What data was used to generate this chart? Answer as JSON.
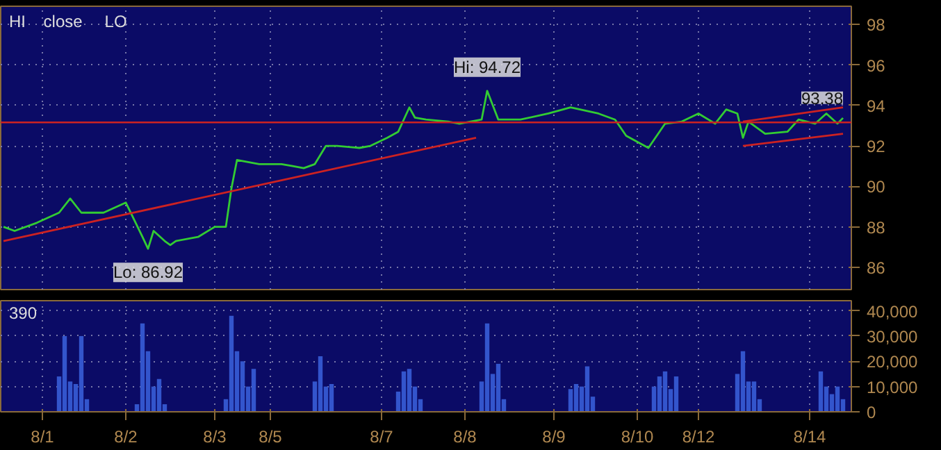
{
  "chart_data": [
    {
      "type": "line",
      "ylim": [
        84.9,
        98.9
      ],
      "yticks": [
        86,
        88,
        90,
        92,
        94,
        96,
        98
      ],
      "categories": [
        null,
        null,
        null,
        null,
        null,
        null,
        null,
        null,
        null,
        null,
        null,
        null,
        null,
        null,
        null,
        null,
        null,
        null,
        null,
        null,
        null,
        null,
        null,
        null,
        null,
        null,
        null,
        null,
        null,
        null,
        null,
        null,
        null,
        null,
        null,
        null,
        null,
        null,
        null,
        null,
        null,
        null,
        null,
        null,
        null,
        null,
        null,
        null,
        null,
        null,
        null,
        null,
        null,
        null,
        null,
        null,
        null,
        null,
        null,
        null,
        null,
        null,
        null,
        null,
        null,
        null,
        null,
        null,
        null,
        null,
        null,
        null,
        null,
        null,
        null,
        null,
        null,
        null,
        null,
        null,
        null,
        null,
        null,
        null,
        null,
        null,
        null,
        null,
        null,
        null,
        null,
        null,
        null,
        null,
        null,
        null,
        null,
        null,
        null,
        null,
        null,
        null,
        null,
        null,
        null,
        null,
        null,
        null,
        null,
        null,
        null,
        null,
        null,
        null,
        null,
        null,
        null,
        null,
        null,
        null,
        null,
        null,
        null,
        null,
        null,
        null,
        null,
        null,
        null,
        null,
        null,
        null,
        null,
        null,
        null,
        null,
        null,
        null,
        null,
        null,
        null,
        null,
        null,
        null,
        null,
        null,
        null,
        null,
        null,
        null,
        null,
        null,
        null
      ],
      "tick_labels": "y",
      "grid": true,
      "line_style": "solid",
      "ref_lines": [
        {
          "axis": "y",
          "value": 93.16,
          "color": "#cc2222"
        }
      ],
      "annotations": [
        {
          "text": "Hi: 94.72",
          "y": 94.72
        },
        {
          "text": "Lo: 86.92",
          "y": 86.92
        },
        {
          "text": "93.38",
          "y": 93.38
        },
        "HI",
        "close",
        "LO"
      ],
      "series": [
        {
          "color": "#33cc33",
          "values": [
            88.0,
            null,
            87.8,
            null,
            null,
            null,
            88.2,
            null,
            null,
            null,
            88.7,
            null,
            89.4,
            null,
            88.7,
            null,
            null,
            null,
            88.7,
            null,
            null,
            null,
            89.2,
            null,
            null,
            87.5,
            86.92,
            87.8,
            null,
            87.3,
            87.1,
            87.3,
            null,
            null,
            null,
            87.5,
            null,
            null,
            88.0,
            null,
            88.0,
            89.9,
            91.3,
            null,
            91.2,
            null,
            91.1,
            null,
            null,
            null,
            91.1,
            null,
            91.0,
            null,
            90.9,
            null,
            91.1,
            null,
            92.0,
            null,
            92.0,
            null,
            null,
            null,
            91.9,
            null,
            92.0,
            null,
            null,
            92.4,
            null,
            92.7,
            null,
            93.9,
            93.4,
            null,
            93.3,
            null,
            null,
            null,
            93.2,
            null,
            93.1,
            null,
            null,
            null,
            93.3,
            94.72,
            null,
            93.3,
            null,
            null,
            null,
            93.3,
            null,
            null,
            null,
            null,
            93.6,
            null,
            null,
            null,
            93.9,
            null,
            null,
            null,
            null,
            93.6,
            null,
            null,
            93.3,
            null,
            92.5,
            null,
            null,
            null,
            91.9,
            null,
            null,
            93.1,
            null,
            null,
            93.2,
            null,
            null,
            93.6,
            null,
            null,
            93.1,
            null,
            93.8,
            null,
            93.6,
            92.4,
            93.2,
            null,
            null,
            92.6,
            null,
            null,
            null,
            92.7,
            null,
            93.3,
            null,
            null,
            93.1,
            null,
            93.6,
            null,
            93.1,
            93.38,
            null
          ]
        },
        {
          "type": "line",
          "color": "#cc2222",
          "values": [
            87.3,
            null,
            null,
            null,
            null,
            null,
            null,
            null,
            null,
            null,
            null,
            null,
            null,
            null,
            null,
            null,
            null,
            null,
            null,
            null,
            null,
            null,
            null,
            null,
            null,
            null,
            null,
            null,
            null,
            null,
            null,
            null,
            null,
            null,
            null,
            null,
            null,
            null,
            null,
            null,
            null,
            null,
            null,
            null,
            null,
            null,
            null,
            null,
            null,
            null,
            null,
            null,
            null,
            null,
            null,
            null,
            null,
            null,
            null,
            null,
            null,
            null,
            null,
            null,
            null,
            null,
            null,
            null,
            null,
            null,
            null,
            null,
            null,
            null,
            null,
            null,
            null,
            null,
            null,
            null,
            null,
            null,
            null,
            null,
            null,
            92.4,
            null,
            null,
            null,
            null,
            null,
            null,
            null,
            null,
            null,
            null,
            null,
            null,
            null,
            null,
            null,
            null,
            null,
            null,
            null,
            null,
            null,
            null,
            null,
            null,
            null,
            null,
            null,
            null,
            null,
            null,
            null,
            null,
            null,
            null,
            null,
            null,
            null,
            null,
            null,
            null,
            null,
            null,
            null,
            null,
            null,
            null,
            null,
            null,
            null,
            null,
            null,
            null,
            null,
            null,
            null,
            null,
            null,
            null,
            null,
            null,
            null,
            null,
            null,
            null,
            null,
            null,
            null
          ]
        },
        {
          "type": "line",
          "color": "#cc2222",
          "values": [
            null,
            null,
            null,
            null,
            null,
            null,
            null,
            null,
            null,
            null,
            null,
            null,
            null,
            null,
            null,
            null,
            null,
            null,
            null,
            null,
            null,
            null,
            null,
            null,
            null,
            null,
            null,
            null,
            null,
            null,
            null,
            null,
            null,
            null,
            null,
            null,
            null,
            null,
            null,
            null,
            null,
            null,
            null,
            null,
            null,
            null,
            null,
            null,
            null,
            null,
            null,
            null,
            null,
            null,
            null,
            null,
            null,
            null,
            null,
            null,
            null,
            null,
            null,
            null,
            null,
            null,
            null,
            null,
            null,
            null,
            null,
            null,
            null,
            null,
            null,
            null,
            null,
            null,
            null,
            null,
            null,
            null,
            null,
            null,
            null,
            null,
            null,
            null,
            null,
            null,
            null,
            null,
            null,
            null,
            null,
            null,
            null,
            null,
            null,
            null,
            null,
            null,
            null,
            null,
            null,
            null,
            null,
            null,
            null,
            null,
            null,
            null,
            null,
            null,
            null,
            null,
            null,
            null,
            null,
            null,
            null,
            null,
            null,
            null,
            null,
            null,
            null,
            null,
            null,
            null,
            null,
            null,
            null,
            92.0,
            null,
            null,
            null,
            null,
            null,
            null,
            null,
            null,
            null,
            null,
            null,
            null,
            null,
            null,
            null,
            null,
            null,
            92.6,
            null
          ]
        },
        {
          "type": "line",
          "color": "#cc2222",
          "values": [
            null,
            null,
            null,
            null,
            null,
            null,
            null,
            null,
            null,
            null,
            null,
            null,
            null,
            null,
            null,
            null,
            null,
            null,
            null,
            null,
            null,
            null,
            null,
            null,
            null,
            null,
            null,
            null,
            null,
            null,
            null,
            null,
            null,
            null,
            null,
            null,
            null,
            null,
            null,
            null,
            null,
            null,
            null,
            null,
            null,
            null,
            null,
            null,
            null,
            null,
            null,
            null,
            null,
            null,
            null,
            null,
            null,
            null,
            null,
            null,
            null,
            null,
            null,
            null,
            null,
            null,
            null,
            null,
            null,
            null,
            null,
            null,
            null,
            null,
            null,
            null,
            null,
            null,
            null,
            null,
            null,
            null,
            null,
            null,
            null,
            null,
            null,
            null,
            null,
            null,
            null,
            null,
            null,
            null,
            null,
            null,
            null,
            null,
            null,
            null,
            null,
            null,
            null,
            null,
            null,
            null,
            null,
            null,
            null,
            null,
            null,
            null,
            null,
            null,
            null,
            null,
            null,
            null,
            null,
            null,
            null,
            null,
            null,
            null,
            null,
            null,
            null,
            null,
            null,
            null,
            null,
            null,
            null,
            93.2,
            null,
            null,
            null,
            null,
            null,
            null,
            null,
            null,
            null,
            null,
            null,
            null,
            null,
            null,
            null,
            null,
            null,
            93.9,
            null
          ]
        }
      ]
    },
    {
      "type": "bar",
      "ylim": [
        0,
        44000
      ],
      "yticks": [
        {
          "value": 0,
          "label": "0"
        },
        {
          "value": 10000,
          "label": "10,000"
        },
        {
          "value": 20000,
          "label": "20,000"
        },
        {
          "value": 30000,
          "label": "30,000"
        },
        {
          "value": 40000,
          "label": "40,000"
        }
      ],
      "categories": [
        null,
        null,
        null,
        null,
        null,
        null,
        null,
        "8/1",
        null,
        null,
        null,
        null,
        null,
        null,
        null,
        null,
        null,
        null,
        null,
        null,
        null,
        null,
        "8/2",
        null,
        null,
        null,
        null,
        null,
        null,
        null,
        null,
        null,
        null,
        null,
        null,
        null,
        null,
        null,
        "8/3",
        null,
        null,
        null,
        null,
        null,
        null,
        null,
        null,
        null,
        "8/5",
        null,
        null,
        null,
        null,
        null,
        null,
        null,
        null,
        null,
        null,
        null,
        null,
        null,
        null,
        null,
        null,
        null,
        null,
        null,
        "8/7",
        null,
        null,
        null,
        null,
        null,
        null,
        null,
        null,
        null,
        null,
        null,
        null,
        null,
        null,
        "8/8",
        null,
        null,
        null,
        null,
        null,
        null,
        null,
        null,
        null,
        null,
        null,
        null,
        null,
        null,
        null,
        "8/9",
        null,
        null,
        null,
        null,
        null,
        null,
        null,
        null,
        null,
        null,
        null,
        null,
        null,
        null,
        "8/10",
        null,
        null,
        null,
        null,
        null,
        null,
        null,
        null,
        null,
        null,
        "8/12",
        null,
        null,
        null,
        null,
        null,
        null,
        null,
        null,
        null,
        null,
        null,
        null,
        null,
        null,
        null,
        null,
        null,
        null,
        null,
        "8/14",
        null,
        null,
        null,
        null,
        null,
        null,
        null
      ],
      "grid": true,
      "annotations": [
        "390"
      ],
      "series": [
        {
          "color": "#3355cc",
          "values": [
            null,
            null,
            null,
            null,
            null,
            null,
            null,
            null,
            null,
            null,
            14000,
            30000,
            12000,
            11000,
            30000,
            5000,
            null,
            null,
            null,
            null,
            null,
            null,
            null,
            null,
            3000,
            35000,
            24000,
            10000,
            13000,
            3000,
            null,
            null,
            null,
            null,
            null,
            null,
            null,
            null,
            null,
            null,
            5000,
            38000,
            24000,
            20000,
            10000,
            17000,
            null,
            null,
            null,
            null,
            null,
            null,
            null,
            null,
            null,
            null,
            12000,
            22000,
            10000,
            11000,
            null,
            null,
            null,
            null,
            null,
            null,
            null,
            null,
            null,
            null,
            null,
            8000,
            16000,
            17000,
            10000,
            5000,
            null,
            null,
            null,
            null,
            null,
            null,
            null,
            null,
            null,
            null,
            12000,
            35000,
            15000,
            19000,
            5000,
            null,
            null,
            null,
            null,
            null,
            null,
            null,
            null,
            null,
            null,
            null,
            9000,
            11000,
            10000,
            18000,
            6000,
            null,
            null,
            null,
            null,
            null,
            null,
            null,
            null,
            null,
            null,
            10000,
            14000,
            16000,
            9000,
            14000,
            null,
            null,
            null,
            null,
            null,
            null,
            null,
            null,
            null,
            null,
            15000,
            24000,
            12000,
            12000,
            5000,
            null,
            null,
            null,
            null,
            null,
            null,
            null,
            null,
            null,
            null,
            16000,
            10000,
            7000,
            10000,
            5000,
            null
          ]
        }
      ]
    }
  ]
}
